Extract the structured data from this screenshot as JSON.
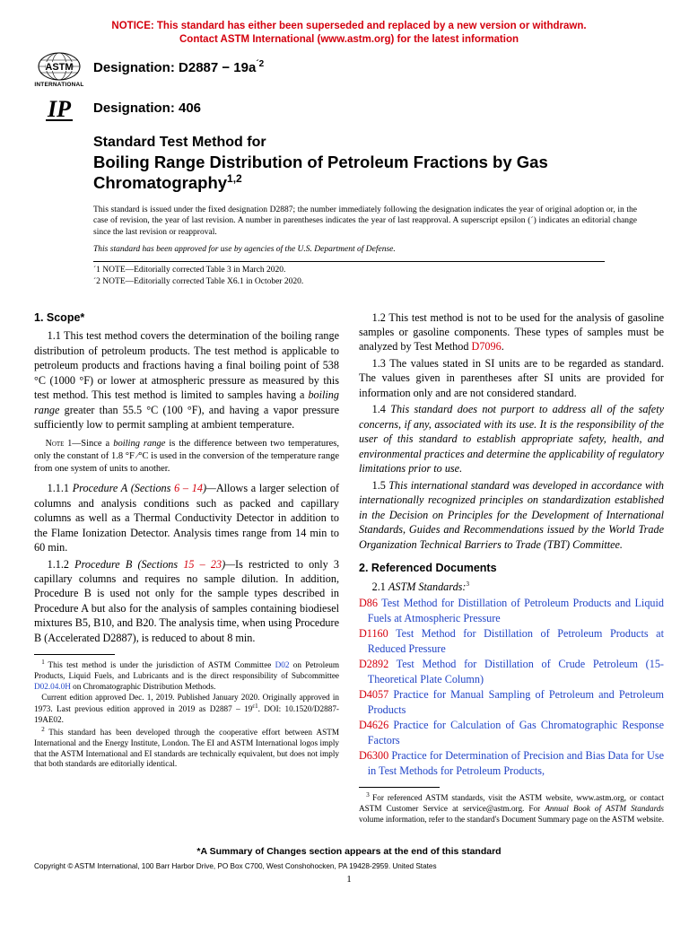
{
  "notice": {
    "line1": "NOTICE: This standard has either been superseded and replaced by a new version or withdrawn.",
    "line2": "Contact ASTM International (www.astm.org) for the latest information"
  },
  "logos": {
    "astm_text": "ASTM",
    "astm_sub": "INTERNATIONAL",
    "ip_text": "IP"
  },
  "designation": {
    "label1_prefix": "Designation: ",
    "code1": "D2887 − 19a",
    "eps": "´2",
    "label2": "Designation: 406"
  },
  "title": {
    "pre": "Standard Test Method for",
    "main": "Boiling Range Distribution of Petroleum Fractions by Gas Chromatography",
    "sup": "1,2"
  },
  "issued": {
    "p1": "This standard is issued under the fixed designation D2887; the number immediately following the designation indicates the year of original adoption or, in the case of revision, the year of last revision. A number in parentheses indicates the year of last reapproval. A superscript epsilon (´) indicates an editorial change since the last revision or reapproval.",
    "p2": "This standard has been approved for use by agencies of the U.S. Department of Defense."
  },
  "epsnotes": {
    "e1": "´1 NOTE—Editorially corrected Table 3 in March 2020.",
    "e2": "´2 NOTE—Editorially corrected Table X6.1 in October 2020."
  },
  "left": {
    "sec1": "1. Scope*",
    "p11": "1.1 This test method covers the determination of the boiling range distribution of petroleum products. The test method is applicable to petroleum products and fractions having a final boiling point of 538 °C (1000 °F) or lower at atmospheric pressure as measured by this test method. This test method is limited to samples having a ",
    "p11_ital": "boiling range",
    "p11_cont": " greater than 55.5 °C (100 °F), and having a vapor pressure sufficiently low to permit sampling at ambient temperature.",
    "note1_label": "Note 1—",
    "note1_a": "Since a ",
    "note1_ital": "boiling range",
    "note1_b": " is the difference between two temperatures, only the constant of 1.8 °F ⁄°C is used in the conversion of the temperature range from one system of units to another.",
    "p111_a": "1.1.1 ",
    "p111_ital": "Procedure A (Sections ",
    "p111_link": "6 – 14",
    "p111_ital2": ")—",
    "p111_b": "Allows a larger selection of columns and analysis conditions such as packed and capillary columns as well as a Thermal Conductivity Detector in addition to the Flame Ionization Detector. Analysis times range from 14 min to 60 min.",
    "p112_a": "1.1.2 ",
    "p112_ital": "Procedure B (Sections ",
    "p112_link": "15 – 23",
    "p112_ital2": ")—",
    "p112_b": "Is restricted to only 3 capillary columns and requires no sample dilution. In addition, Procedure B is used not only for the sample types described in Procedure A but also for the analysis of samples containing biodiesel mixtures B5, B10, and B20. The analysis time, when using Procedure B (Accelerated D2887), is reduced to about 8 min.",
    "fn1_a": "This test method is under the jurisdiction of ASTM Committee ",
    "fn1_link1": "D02",
    "fn1_b": " on Petroleum Products, Liquid Fuels, and Lubricants and is the direct responsibility of Subcommittee ",
    "fn1_link2": "D02.04.0H",
    "fn1_c": " on Chromatographic Distribution Methods.",
    "fn1_d": "Current edition approved Dec. 1, 2019. Published January 2020. Originally approved in 1973. Last previous edition approved in 2019 as D2887 – 19",
    "fn1_eps": "ɛ1",
    "fn1_e": ". DOI: 10.1520/D2887-19AE02.",
    "fn2": "This standard has been developed through the cooperative effort between ASTM International and the Energy Institute, London. The EI and ASTM International logos imply that the ASTM International and EI standards are technically equivalent, but does not imply that both standards are editorially identical."
  },
  "right": {
    "p12_a": "1.2 This test method is not to be used for the analysis of gasoline samples or gasoline components. These types of samples must be analyzed by Test Method ",
    "p12_link": "D7096",
    "p12_b": ".",
    "p13": "1.3 The values stated in SI units are to be regarded as standard. The values given in parentheses after SI units are provided for information only and are not considered standard.",
    "p14": "1.4 This standard does not purport to address all of the safety concerns, if any, associated with its use. It is the responsibility of the user of this standard to establish appropriate safety, health, and environmental practices and determine the applicability of regulatory limitations prior to use.",
    "p15": "1.5 This international standard was developed in accordance with internationally recognized principles on standardization established in the Decision on Principles for the Development of International Standards, Guides and Recommendations issued by the World Trade Organization Technical Barriers to Trade (TBT) Committee.",
    "sec2": "2. Referenced Documents",
    "p21_a": "2.1 ",
    "p21_ital": "ASTM Standards:",
    "p21_sup": "3",
    "refs": [
      {
        "code": "D86",
        "text": "Test Method for Distillation of Petroleum Products and Liquid Fuels at Atmospheric Pressure"
      },
      {
        "code": "D1160",
        "text": "Test Method for Distillation of Petroleum Products at Reduced Pressure"
      },
      {
        "code": "D2892",
        "text": "Test Method for Distillation of Crude Petroleum (15-Theoretical Plate Column)"
      },
      {
        "code": "D4057",
        "text": "Practice for Manual Sampling of Petroleum and Petroleum Products"
      },
      {
        "code": "D4626",
        "text": "Practice for Calculation of Gas Chromatographic Response Factors"
      },
      {
        "code": "D6300",
        "text": "Practice for Determination of Precision and Bias Data for Use in Test Methods for Petroleum Products,"
      }
    ],
    "fn3_a": "For referenced ASTM standards, visit the ASTM website, www.astm.org, or contact ASTM Customer Service at service@astm.org. For ",
    "fn3_ital": "Annual Book of ASTM Standards",
    "fn3_b": " volume information, refer to the standard's Document Summary page on the ASTM website."
  },
  "bottom": {
    "summary": "*A Summary of Changes section appears at the end of this standard",
    "copyright": "Copyright © ASTM International, 100 Barr Harbor Drive, PO Box C700, West Conshohocken, PA 19428-2959. United States",
    "pagenum": "1"
  },
  "colors": {
    "red": "#d4000d",
    "link": "#2245c7"
  }
}
